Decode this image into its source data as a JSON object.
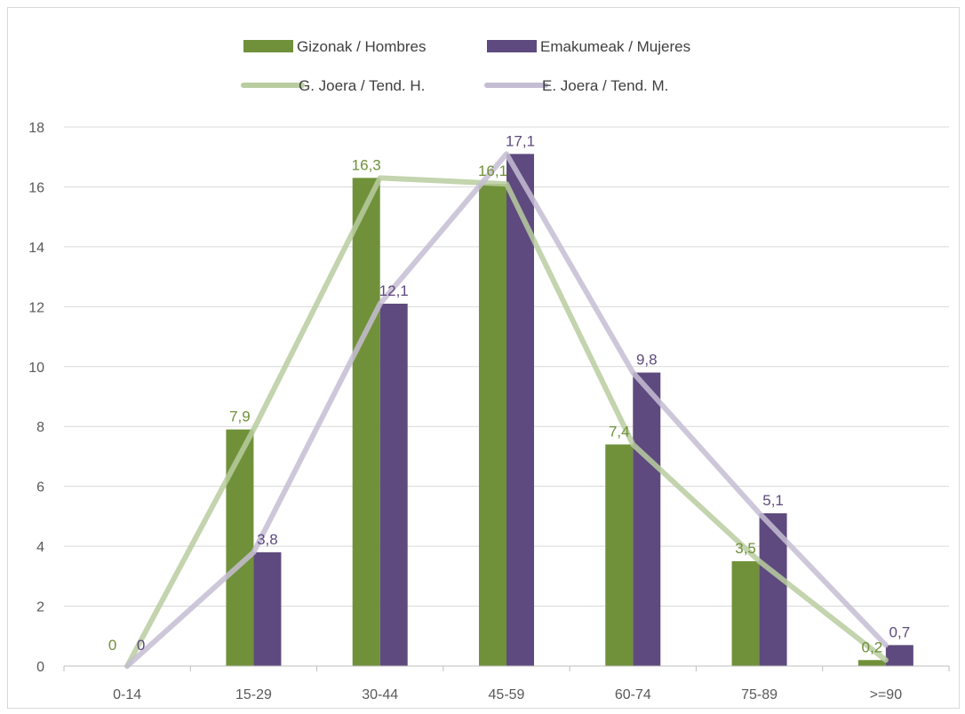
{
  "chart_data": {
    "type": "bar",
    "categories": [
      "0-14",
      "15-29",
      "30-44",
      "45-59",
      "60-74",
      "75-89",
      ">=90"
    ],
    "series": [
      {
        "name": "Gizonak / Hombres",
        "kind": "bar",
        "color": "#70913a",
        "values": [
          0,
          7.9,
          16.3,
          16.1,
          7.4,
          3.5,
          0.2
        ],
        "labels": [
          "0",
          "7,9",
          "16,3",
          "16,1",
          "7,4",
          "3,5",
          "0,2"
        ]
      },
      {
        "name": "Emakumeak / Mujeres",
        "kind": "bar",
        "color": "#5e4a7e",
        "values": [
          0,
          3.8,
          12.1,
          17.1,
          9.8,
          5.1,
          0.7
        ],
        "labels": [
          "0",
          "3,8",
          "12,1",
          "17,1",
          "9,8",
          "5,1",
          "0,7"
        ]
      },
      {
        "name": "G. Joera / Tend. H.",
        "kind": "line",
        "color": "#b9cda0",
        "values": [
          0,
          7.9,
          16.3,
          16.1,
          7.4,
          3.5,
          0.2
        ]
      },
      {
        "name": "E. Joera / Tend. M.",
        "kind": "line",
        "color": "#c5bdd3",
        "values": [
          0,
          3.8,
          12.1,
          17.1,
          9.8,
          5.1,
          0.7
        ]
      }
    ],
    "yticks": [
      "0",
      "2",
      "4",
      "6",
      "8",
      "10",
      "12",
      "14",
      "16",
      "18"
    ],
    "ylim": [
      0,
      18
    ],
    "grid": true,
    "legend_position": "top",
    "title": "",
    "xlabel": "",
    "ylabel": ""
  }
}
